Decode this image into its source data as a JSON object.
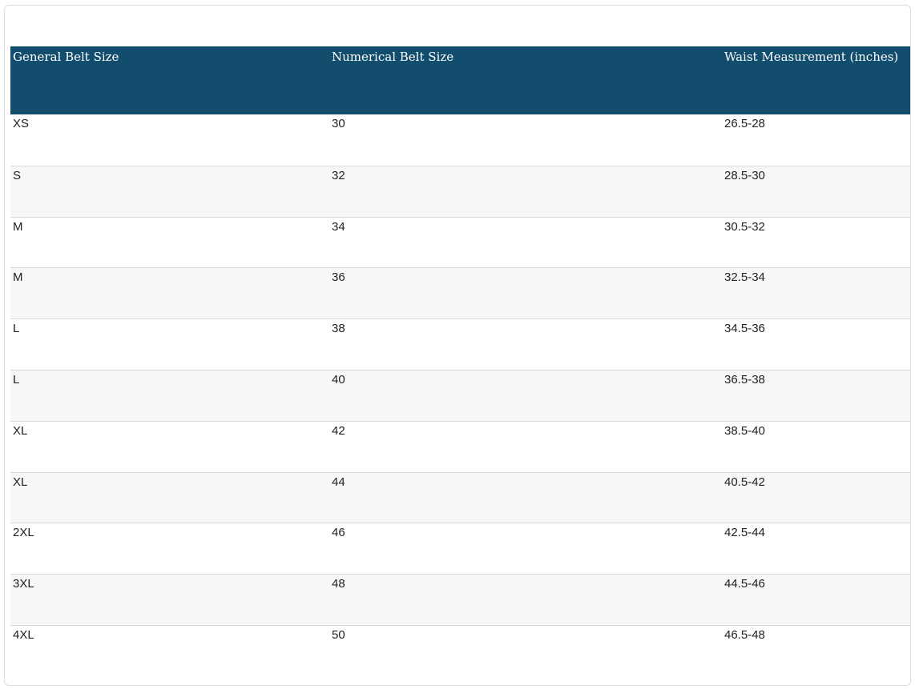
{
  "table": {
    "headers": [
      "General Belt Size",
      "Numerical Belt Size",
      "Waist Measurement (inches)"
    ],
    "rows": [
      [
        "XS",
        "30",
        "26.5-28"
      ],
      [
        "S",
        "32",
        "28.5-30"
      ],
      [
        "M",
        "34",
        "30.5-32"
      ],
      [
        "M",
        "36",
        "32.5-34"
      ],
      [
        "L",
        "38",
        "34.5-36"
      ],
      [
        "L",
        "40",
        "36.5-38"
      ],
      [
        "XL",
        "42",
        "38.5-40"
      ],
      [
        "XL",
        "44",
        "40.5-42"
      ],
      [
        "2XL",
        "46",
        "42.5-44"
      ],
      [
        "3XL",
        "48",
        "44.5-46"
      ],
      [
        "4XL",
        "50",
        "46.5-48"
      ]
    ]
  },
  "colors": {
    "header_background": "#124d6e",
    "header_text": "#ffffff",
    "stripe_background": "#f7f7f7",
    "row_divider": "#d9d9d9"
  }
}
